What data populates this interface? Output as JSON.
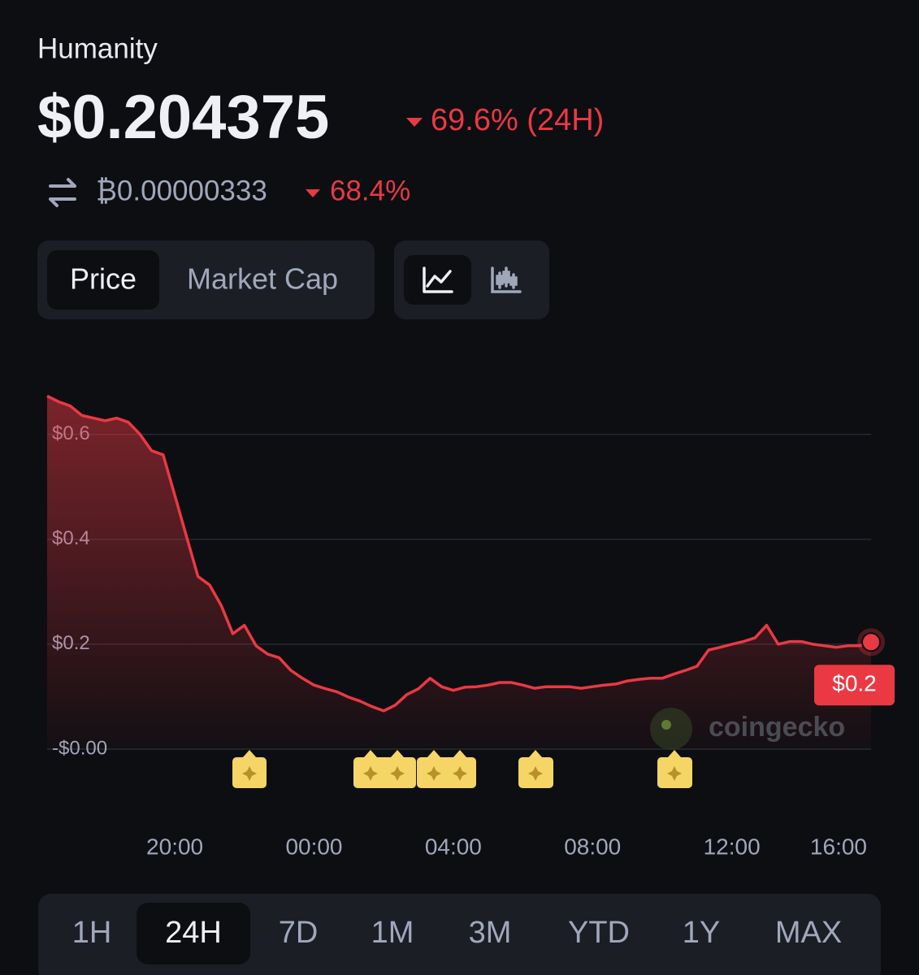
{
  "header": {
    "name": "Humanity",
    "price": "$0.204375",
    "change": "69.6% (24H)",
    "btc_price": "₿0.00000333",
    "btc_change": "68.4%"
  },
  "tabs": [
    "Price",
    "Market Cap"
  ],
  "watermark": "coingecko",
  "chart_data": {
    "type": "line",
    "x": [
      "16:20",
      "16:40",
      "17:00",
      "17:20",
      "17:40",
      "18:00",
      "18:20",
      "18:40",
      "19:00",
      "19:20",
      "19:40",
      "20:00",
      "20:20",
      "20:40",
      "21:00",
      "21:20",
      "21:40",
      "22:00",
      "22:20",
      "22:40",
      "23:00",
      "23:20",
      "23:40",
      "00:00",
      "00:20",
      "00:40",
      "01:00",
      "01:20",
      "01:40",
      "02:00",
      "02:20",
      "02:40",
      "03:00",
      "03:20",
      "03:40",
      "04:00",
      "04:20",
      "04:40",
      "05:00",
      "05:20",
      "05:40",
      "06:00",
      "06:20",
      "06:40",
      "07:00",
      "07:20",
      "07:40",
      "08:00",
      "08:20",
      "08:40",
      "09:00",
      "09:20",
      "09:40",
      "10:00",
      "10:20",
      "10:40",
      "11:00",
      "11:20",
      "11:40",
      "12:00",
      "12:20",
      "12:40",
      "13:00",
      "13:20",
      "13:40",
      "14:00",
      "14:20",
      "14:40",
      "15:00",
      "15:20",
      "15:40",
      "16:00"
    ],
    "series": [
      {
        "color": "#ea3943",
        "values": [
          0.673,
          0.662,
          0.654,
          0.636,
          0.631,
          0.626,
          0.631,
          0.623,
          0.6,
          0.569,
          0.561,
          0.484,
          0.406,
          0.329,
          0.313,
          0.274,
          0.22,
          0.236,
          0.197,
          0.181,
          0.174,
          0.15,
          0.135,
          0.122,
          0.115,
          0.109,
          0.099,
          0.091,
          0.081,
          0.073,
          0.084,
          0.104,
          0.115,
          0.135,
          0.119,
          0.112,
          0.118,
          0.119,
          0.122,
          0.127,
          0.127,
          0.122,
          0.116,
          0.119,
          0.119,
          0.119,
          0.116,
          0.119,
          0.122,
          0.124,
          0.13,
          0.133,
          0.135,
          0.135,
          0.143,
          0.15,
          0.158,
          0.189,
          0.194,
          0.2,
          0.205,
          0.212,
          0.236,
          0.2,
          0.205,
          0.205,
          0.2,
          0.197,
          0.194,
          0.197,
          0.197,
          0.204
        ]
      }
    ],
    "current_label": "$0.2",
    "ylim": [
      0,
      0.7
    ],
    "yticks": [
      {
        "value": 0,
        "label": "-$0.00"
      },
      {
        "value": 0.2,
        "label": "$0.2"
      },
      {
        "value": 0.4,
        "label": "$0.4"
      },
      {
        "value": 0.6,
        "label": "$0.6"
      }
    ],
    "xticks": [
      "20:00",
      "00:00",
      "04:00",
      "08:00",
      "12:00",
      "16:00"
    ],
    "grid": true
  },
  "ranges": [
    "1H",
    "24H",
    "7D",
    "1M",
    "3M",
    "YTD",
    "1Y",
    "MAX"
  ]
}
